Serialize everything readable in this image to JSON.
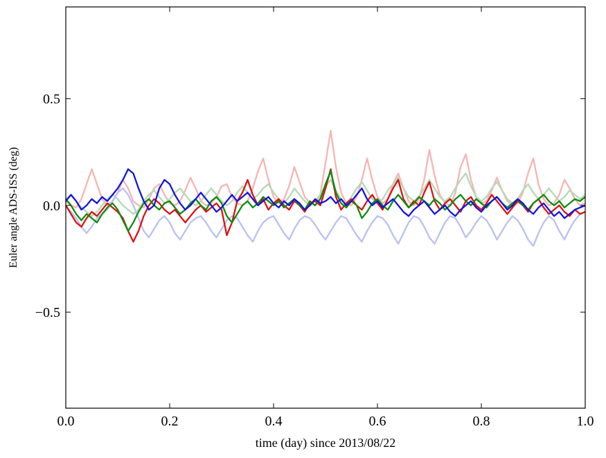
{
  "figure": {
    "background": "#ffffff",
    "frame_color": "#000000"
  },
  "chart_data": {
    "type": "line",
    "title": "",
    "xlabel": "time (day) since 2013/08/22",
    "ylabel": "Euler angle ADS-ISS (deg)",
    "xlim": [
      0.0,
      1.0
    ],
    "ylim": [
      -0.95,
      0.93
    ],
    "xticks": [
      0.0,
      0.2,
      0.4,
      0.6,
      0.8,
      1.0
    ],
    "xtick_labels": [
      "0.0",
      "0.2",
      "0.4",
      "0.6",
      "0.8",
      "1.0"
    ],
    "yticks": [
      -0.5,
      0.0,
      0.5
    ],
    "ytick_labels": [
      "−0.5",
      "0.0",
      "0.5"
    ],
    "grid": false,
    "legend": null,
    "x_start": 0,
    "x_step": 0.01,
    "series": [
      {
        "name": "faded-red-line",
        "color": "#f6b6b6",
        "width": 2.4,
        "values": [
          0.02,
          0.0,
          -0.01,
          0.03,
          0.1,
          0.17,
          0.1,
          0.03,
          0.0,
          0.02,
          0.06,
          0.12,
          0.08,
          0.02,
          0.0,
          -0.01,
          0.03,
          0.08,
          0.1,
          0.05,
          0.01,
          0.0,
          0.02,
          0.07,
          0.13,
          0.08,
          0.02,
          0.0,
          0.01,
          0.04,
          0.09,
          0.1,
          0.04,
          0.01,
          0.0,
          0.02,
          0.08,
          0.16,
          0.22,
          0.12,
          0.04,
          0.01,
          0.03,
          0.09,
          0.18,
          0.11,
          0.04,
          0.01,
          0.0,
          0.05,
          0.2,
          0.35,
          0.18,
          0.06,
          0.01,
          0.0,
          0.04,
          0.12,
          0.22,
          0.12,
          0.04,
          0.01,
          0.03,
          0.1,
          0.15,
          0.08,
          0.02,
          0.0,
          0.03,
          0.12,
          0.26,
          0.14,
          0.05,
          0.01,
          0.0,
          0.06,
          0.18,
          0.24,
          0.12,
          0.04,
          0.01,
          0.02,
          0.07,
          0.13,
          0.07,
          0.02,
          0.0,
          0.01,
          0.06,
          0.15,
          0.22,
          0.1,
          0.03,
          0.0,
          0.01,
          0.05,
          0.12,
          0.08,
          0.03,
          0.0,
          0.01
        ]
      },
      {
        "name": "faded-green-line",
        "color": "#b7d9b7",
        "width": 2.4,
        "values": [
          0.03,
          0.05,
          0.02,
          -0.01,
          -0.03,
          -0.05,
          -0.03,
          0.0,
          0.03,
          0.05,
          0.03,
          0.0,
          -0.02,
          -0.04,
          -0.02,
          0.02,
          0.05,
          0.07,
          0.04,
          0.01,
          0.03,
          0.06,
          0.08,
          0.05,
          0.02,
          0.0,
          0.02,
          0.05,
          0.08,
          0.05,
          0.02,
          0.0,
          0.02,
          0.06,
          0.09,
          0.06,
          0.03,
          0.05,
          0.08,
          0.1,
          0.06,
          0.03,
          0.01,
          0.04,
          0.08,
          0.05,
          0.02,
          0.0,
          0.02,
          0.05,
          0.09,
          0.12,
          0.07,
          0.03,
          0.01,
          0.04,
          0.08,
          0.11,
          0.07,
          0.03,
          0.01,
          0.03,
          0.07,
          0.1,
          0.13,
          0.08,
          0.04,
          0.02,
          0.04,
          0.08,
          0.12,
          0.08,
          0.04,
          0.02,
          0.04,
          0.08,
          0.12,
          0.15,
          0.09,
          0.04,
          0.02,
          0.04,
          0.08,
          0.11,
          0.07,
          0.03,
          0.01,
          0.03,
          0.07,
          0.1,
          0.06,
          0.03,
          0.05,
          0.08,
          0.05,
          0.02,
          0.04,
          0.07,
          0.05,
          0.03,
          0.05
        ]
      },
      {
        "name": "faded-blue-line",
        "color": "#bcc2f2",
        "width": 2.4,
        "values": [
          0.0,
          -0.03,
          -0.06,
          -0.1,
          -0.13,
          -0.1,
          -0.06,
          -0.04,
          -0.02,
          0.02,
          0.06,
          0.08,
          0.05,
          0.0,
          -0.06,
          -0.12,
          -0.15,
          -0.11,
          -0.07,
          -0.05,
          -0.08,
          -0.13,
          -0.16,
          -0.12,
          -0.08,
          -0.06,
          -0.05,
          -0.08,
          -0.12,
          -0.15,
          -0.11,
          -0.07,
          -0.05,
          -0.06,
          -0.1,
          -0.14,
          -0.17,
          -0.12,
          -0.08,
          -0.06,
          -0.05,
          -0.09,
          -0.13,
          -0.16,
          -0.11,
          -0.07,
          -0.05,
          -0.06,
          -0.09,
          -0.13,
          -0.16,
          -0.12,
          -0.08,
          -0.05,
          -0.06,
          -0.1,
          -0.14,
          -0.17,
          -0.12,
          -0.08,
          -0.05,
          -0.06,
          -0.09,
          -0.14,
          -0.18,
          -0.13,
          -0.08,
          -0.05,
          -0.06,
          -0.1,
          -0.15,
          -0.18,
          -0.13,
          -0.08,
          -0.05,
          -0.06,
          -0.1,
          -0.15,
          -0.12,
          -0.08,
          -0.05,
          -0.07,
          -0.11,
          -0.16,
          -0.12,
          -0.08,
          -0.05,
          -0.07,
          -0.11,
          -0.16,
          -0.19,
          -0.13,
          -0.08,
          -0.05,
          -0.07,
          -0.12,
          -0.16,
          -0.11,
          -0.07,
          -0.04,
          -0.03
        ]
      },
      {
        "name": "red-line",
        "color": "#dd1111",
        "width": 2.3,
        "values": [
          0.0,
          -0.04,
          -0.08,
          -0.1,
          -0.06,
          -0.03,
          -0.05,
          -0.02,
          0.01,
          -0.01,
          -0.03,
          -0.06,
          -0.12,
          -0.17,
          -0.12,
          -0.05,
          0.0,
          0.03,
          0.01,
          -0.02,
          -0.04,
          -0.02,
          -0.05,
          -0.08,
          -0.05,
          -0.02,
          0.0,
          -0.03,
          -0.01,
          0.01,
          -0.02,
          -0.14,
          -0.08,
          0.02,
          0.06,
          0.12,
          0.05,
          0.0,
          0.03,
          -0.02,
          0.01,
          0.03,
          0.0,
          -0.02,
          0.02,
          0.0,
          -0.03,
          0.01,
          0.02,
          0.0,
          0.08,
          0.17,
          0.04,
          -0.02,
          0.01,
          0.03,
          0.0,
          -0.02,
          0.02,
          0.05,
          0.01,
          -0.02,
          0.03,
          0.08,
          0.12,
          0.03,
          -0.01,
          0.02,
          0.0,
          0.06,
          0.11,
          0.02,
          -0.02,
          0.01,
          0.03,
          0.0,
          -0.03,
          0.02,
          0.04,
          0.0,
          -0.02,
          0.01,
          0.05,
          0.02,
          -0.01,
          -0.04,
          -0.01,
          0.02,
          0.0,
          -0.03,
          0.01,
          0.03,
          -0.01,
          -0.04,
          -0.02,
          0.0,
          -0.03,
          -0.05,
          -0.02,
          -0.04,
          -0.03
        ]
      },
      {
        "name": "green-line",
        "color": "#0e8c0e",
        "width": 2.3,
        "values": [
          0.03,
          0.0,
          -0.04,
          -0.07,
          -0.04,
          -0.06,
          -0.08,
          -0.04,
          -0.01,
          0.01,
          -0.02,
          -0.07,
          -0.12,
          -0.08,
          -0.03,
          0.01,
          0.03,
          0.0,
          -0.02,
          0.01,
          0.02,
          -0.01,
          -0.04,
          -0.02,
          0.01,
          0.03,
          0.0,
          -0.02,
          0.02,
          0.04,
          0.01,
          -0.05,
          -0.08,
          -0.04,
          0.0,
          0.02,
          -0.01,
          0.01,
          0.04,
          0.02,
          0.0,
          0.02,
          -0.01,
          0.01,
          0.03,
          0.0,
          -0.02,
          0.02,
          0.0,
          0.03,
          0.1,
          0.16,
          0.06,
          0.01,
          -0.01,
          0.02,
          0.0,
          -0.06,
          -0.03,
          0.01,
          0.03,
          0.0,
          -0.02,
          0.02,
          0.05,
          0.02,
          -0.01,
          0.01,
          0.04,
          0.02,
          0.0,
          0.03,
          0.01,
          -0.02,
          0.0,
          0.03,
          0.05,
          0.02,
          0.0,
          0.03,
          0.01,
          -0.01,
          0.02,
          0.04,
          0.01,
          -0.01,
          0.01,
          0.03,
          0.0,
          -0.02,
          0.01,
          0.03,
          0.05,
          0.02,
          0.0,
          0.02,
          -0.01,
          0.01,
          0.03,
          0.02,
          0.04
        ]
      },
      {
        "name": "blue-line",
        "color": "#1414dd",
        "width": 2.3,
        "values": [
          0.02,
          0.05,
          0.02,
          -0.02,
          0.0,
          0.03,
          0.01,
          0.04,
          0.02,
          0.05,
          0.08,
          0.12,
          0.17,
          0.15,
          0.08,
          0.02,
          -0.02,
          0.0,
          0.08,
          0.12,
          0.1,
          0.05,
          0.01,
          -0.02,
          0.0,
          0.03,
          0.06,
          0.03,
          0.0,
          -0.03,
          -0.01,
          0.02,
          0.05,
          0.02,
          0.04,
          0.06,
          0.03,
          0.0,
          0.02,
          0.04,
          0.01,
          -0.01,
          0.02,
          0.0,
          0.03,
          0.01,
          -0.02,
          0.0,
          0.03,
          0.01,
          0.02,
          0.04,
          0.01,
          0.03,
          0.0,
          0.02,
          0.05,
          0.08,
          0.03,
          0.0,
          0.02,
          -0.01,
          0.01,
          0.03,
          0.0,
          -0.03,
          -0.05,
          -0.02,
          0.0,
          0.02,
          -0.01,
          -0.04,
          -0.02,
          0.0,
          -0.03,
          -0.05,
          -0.02,
          0.0,
          0.02,
          -0.01,
          -0.03,
          0.0,
          0.02,
          0.04,
          0.01,
          -0.02,
          0.0,
          0.03,
          0.01,
          -0.02,
          -0.04,
          -0.01,
          0.01,
          -0.02,
          -0.05,
          -0.03,
          -0.06,
          -0.04,
          -0.02,
          -0.01,
          0.0
        ]
      }
    ]
  }
}
